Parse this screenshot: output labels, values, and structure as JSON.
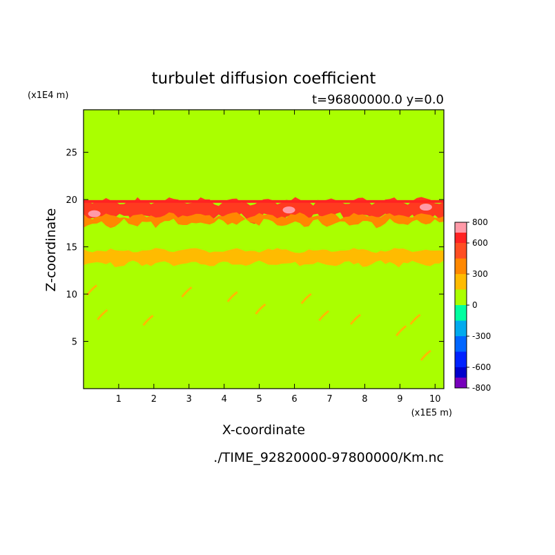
{
  "chart_data": {
    "type": "heatmap",
    "title": "turbulet diffusion coefficient",
    "subtitle": "t=96800000.0 y=0.0",
    "xlabel": "X-coordinate",
    "ylabel": "Z-coordinate",
    "x_unit": "(x1E5 m)",
    "y_unit": "(x1E4 m)",
    "source_file": "./TIME_92820000-97800000/Km.nc",
    "xlim": [
      0,
      10.25
    ],
    "ylim": [
      0,
      29.5
    ],
    "x_ticks": [
      "1",
      "2",
      "3",
      "4",
      "5",
      "6",
      "7",
      "8",
      "9",
      "10"
    ],
    "y_ticks": [
      "5",
      "10",
      "15",
      "20",
      "25"
    ],
    "background_level_value": 0,
    "colorbar": {
      "min": -800,
      "max": 800,
      "ticks": [
        "800",
        "600",
        "300",
        "0",
        "-300",
        "-600",
        "-800"
      ],
      "bins": [
        {
          "from": 700,
          "to": 800,
          "color": "#ff9aa8"
        },
        {
          "from": 600,
          "to": 700,
          "color": "#ff2222"
        },
        {
          "from": 450,
          "to": 600,
          "color": "#ff4e22"
        },
        {
          "from": 300,
          "to": 450,
          "color": "#ff8800"
        },
        {
          "from": 150,
          "to": 300,
          "color": "#ffbb00"
        },
        {
          "from": 0,
          "to": 150,
          "color": "#aaff00"
        },
        {
          "from": -150,
          "to": 0,
          "color": "#00ffa0"
        },
        {
          "from": -300,
          "to": -150,
          "color": "#00aaee"
        },
        {
          "from": -450,
          "to": -300,
          "color": "#0066ff"
        },
        {
          "from": -600,
          "to": -450,
          "color": "#0022ff"
        },
        {
          "from": -700,
          "to": -600,
          "color": "#0000cc"
        },
        {
          "from": -800,
          "to": -700,
          "color": "#7700bb"
        }
      ]
    },
    "regions": [
      {
        "name": "upper-band",
        "z_from": 18.0,
        "z_to": 19.8,
        "value": 500,
        "color": "#ff3a1f"
      },
      {
        "name": "upper-band-edge",
        "z_from": 17.5,
        "z_to": 18.3,
        "value": 350,
        "color": "#ff8800"
      },
      {
        "name": "middle-band",
        "z_from": 13.2,
        "z_to": 14.6,
        "value": 250,
        "color": "#ffbb00"
      }
    ]
  }
}
